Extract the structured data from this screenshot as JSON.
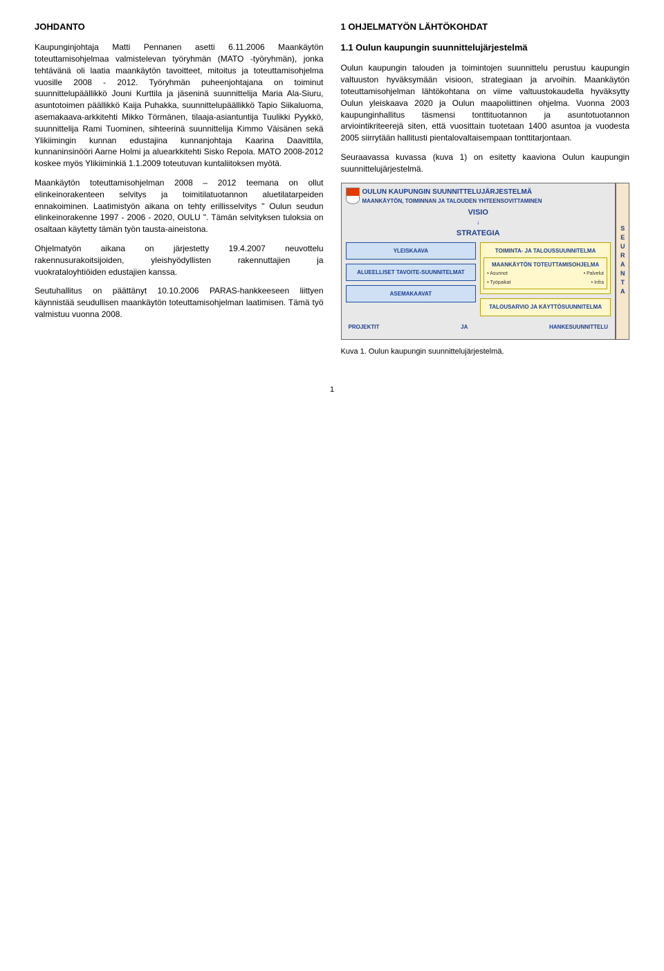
{
  "left": {
    "title": "JOHDANTO",
    "p1": "Kaupunginjohtaja Matti Pennanen asetti 6.11.2006 Maankäytön toteuttamisohjelmaa valmistelevan työryhmän (MATO -työryhmän), jonka tehtävänä oli laatia maankäytön tavoitteet, mitoitus ja toteuttamisohjelma vuosille 2008 - 2012. Työryhmän puheenjohtajana on toiminut suunnittelupäällikkö Jouni Kurttila ja jäseninä suunnittelija Maria Ala-Siuru, asuntotoimen päällikkö Kaija Puhakka, suunnittelupäällikkö Tapio Siikaluoma, asemakaava-arkkitehti Mikko Törmänen, tilaaja-asiantuntija Tuulikki Pyykkö, suunnittelija Rami Tuominen, sihteerinä suunnittelija Kimmo Väisänen sekä Ylikiimingin kunnan edustajina kunnanjohtaja Kaarina Daavittila, kunnaninsinööri Aarne Holmi ja aluearkkitehti Sisko Repola. MATO 2008-2012 koskee myös Ylikiiminkiä 1.1.2009 toteutuvan kuntaliitoksen myötä.",
    "p2": "Maankäytön toteuttamisohjelman 2008 – 2012 teemana on ollut elinkeinorakenteen selvitys ja toimitilatuotannon aluetilatarpeiden ennakoiminen. Laatimistyön aikana on tehty erillisselvitys \" Oulun seudun elinkeinorakenne 1997 - 2006 - 2020, OULU \". Tämän selvityksen tuloksia on osaltaan käytetty tämän työn tausta-aineistona.",
    "p3": "Ohjelmatyön aikana on järjestetty 19.4.2007 neuvottelu rakennusurakoitsijoiden, yleishyödyllisten rakennuttajien ja vuokrataloyhtiöiden edustajien kanssa.",
    "p4": "Seutuhallitus on päättänyt 10.10.2006 PARAS-hankkeeseen liittyen käynnistää seudullisen maankäytön toteuttamisohjelman laatimisen. Tämä työ valmistuu vuonna 2008."
  },
  "right": {
    "title": "1 OHJELMATYÖN LÄHTÖKOHDAT",
    "subtitle": "1.1 Oulun kaupungin suunnittelujärjestelmä",
    "p1": "Oulun kaupungin talouden ja toimintojen suunnittelu perustuu kaupungin valtuuston hyväksymään visioon, strategiaan ja arvoihin. Maankäytön toteuttamisohjelman lähtökohtana on viime valtuustokaudella hyväksytty Oulun yleiskaava 2020 ja Oulun maapoliittinen ohjelma. Vuonna 2003 kaupunginhallitus täsmensi tonttituotannon ja asuntotuotannon arviointikriteerejä siten, että vuosittain tuotetaan 1400 asuntoa ja vuodesta 2005 siirrytään hallitusti pientalovaltaisempaan tonttitarjontaan.",
    "p2": "Seuraavassa kuvassa (kuva 1) on esitetty kaaviona Oulun kaupungin suunnittelujärjestelmä."
  },
  "diagram": {
    "title": "OULUN KAUPUNGIN SUUNNITTELUJÄRJESTELMÄ",
    "subtitle": "MAANKÄYTÖN, TOIMINNAN JA TALOUDEN YHTEENSOVITTAMINEN",
    "visio": "VISIO",
    "strategia": "STRATEGIA",
    "yleiskaava": "YLEISKAAVA",
    "alueelliset": "ALUEELLISET TAVOITE-SUUNNITELMAT",
    "asemakaavat": "ASEMAKAAVAT",
    "toiminta": "TOIMINTA- JA TALOUSSUUNNITELMA",
    "maankayton": "MAANKÄYTÖN TOTEUTTAMISOHJELMA",
    "b1": "• Asunnot",
    "b2": "• Palvelut",
    "b3": "• Työpaikat",
    "b4": "• Infra",
    "talousarvio": "TALOUSARVIO JA KÄYTTÖSUUNNITELMA",
    "projektit": "PROJEKTIT",
    "ja": "JA",
    "hanke": "HANKESUUNNITTELU",
    "seuranta": "SEURANTA",
    "colors": {
      "outer_bg": "#e8e8e8",
      "box_bg": "#cfe0f5",
      "box_border": "#1a4ea0",
      "yellow_bg": "#fff8cc",
      "yellow_border": "#b8a000",
      "text_blue": "#1a3e8c",
      "seuranta_bg": "#f5e6cc"
    }
  },
  "caption": "Kuva 1. Oulun kaupungin suunnittelujärjestelmä.",
  "page_number": "1"
}
